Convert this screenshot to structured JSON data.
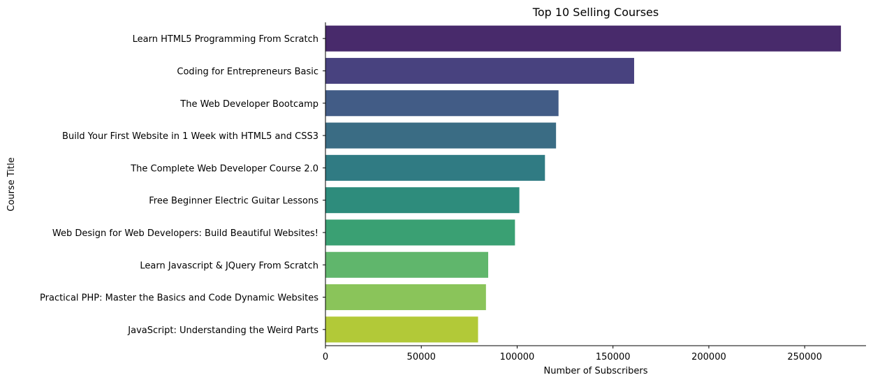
{
  "chart_data": {
    "type": "bar",
    "orientation": "horizontal",
    "title": "Top 10 Selling Courses",
    "xlabel": "Number of Subscribers",
    "ylabel": "Course Title",
    "xlim": [
      0,
      282000
    ],
    "xticks": [
      0,
      50000,
      100000,
      150000,
      200000,
      250000
    ],
    "grid": false,
    "categories": [
      "Learn HTML5 Programming From Scratch",
      "Coding for Entrepreneurs Basic",
      "The Web Developer Bootcamp",
      "Build Your First Website in 1 Week with HTML5 and CSS3",
      "The Complete Web Developer Course 2.0",
      "Free Beginner Electric Guitar Lessons",
      "Web Design for Web Developers: Build Beautiful Websites!",
      "Learn Javascript & JQuery From Scratch",
      "Practical PHP: Master the Basics and Code Dynamic Websites",
      "JavaScript: Understanding the Weird Parts"
    ],
    "values": [
      268923,
      161029,
      121584,
      120291,
      114512,
      101154,
      98867,
      84897,
      83737,
      79612
    ],
    "colors": [
      "#482a6b",
      "#48427f",
      "#425c86",
      "#3a6c84",
      "#307b83",
      "#2e8c7c",
      "#3aa073",
      "#60b66c",
      "#8ac45a",
      "#b2c938"
    ]
  }
}
